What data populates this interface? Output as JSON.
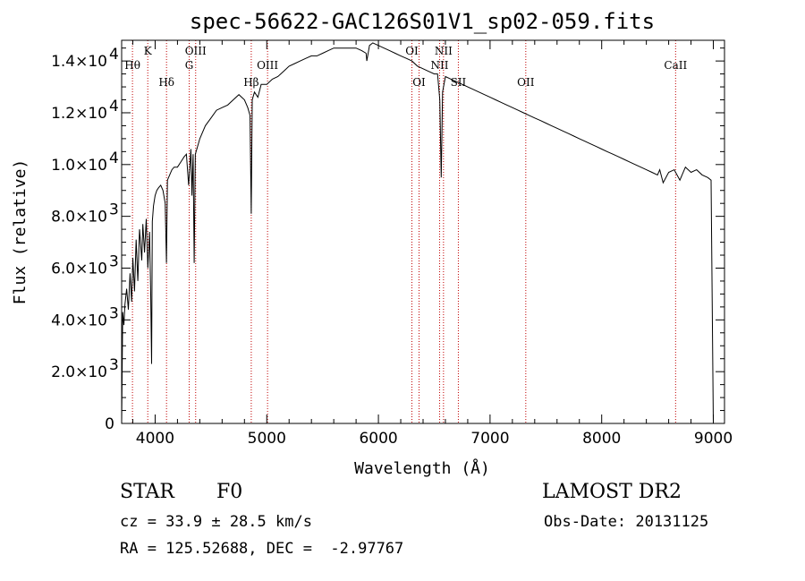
{
  "chart_data": {
    "type": "line",
    "title": "spec-56622-GAC126S01V1_sp02-059.fits",
    "xlabel": "Wavelength (Å)",
    "ylabel": "Flux (relative)",
    "xlim": [
      3700,
      9100
    ],
    "ylim": [
      0,
      14800
    ],
    "grid": false,
    "x_ticks": [
      4000,
      5000,
      6000,
      7000,
      8000,
      9000
    ],
    "y_ticks": [
      {
        "value": 0,
        "mant": "0",
        "exp": ""
      },
      {
        "value": 2000,
        "mant": "2.0×10",
        "exp": "3"
      },
      {
        "value": 4000,
        "mant": "4.0×10",
        "exp": "3"
      },
      {
        "value": 6000,
        "mant": "6.0×10",
        "exp": "3"
      },
      {
        "value": 8000,
        "mant": "8.0×10",
        "exp": "3"
      },
      {
        "value": 10000,
        "mant": "1.0×10",
        "exp": "4"
      },
      {
        "value": 12000,
        "mant": "1.2×10",
        "exp": "4"
      },
      {
        "value": 14000,
        "mant": "1.4×10",
        "exp": "4"
      }
    ],
    "series": [
      {
        "x": [
          3700,
          3710,
          3720,
          3730,
          3745,
          3760,
          3775,
          3790,
          3800,
          3815,
          3830,
          3845,
          3860,
          3880,
          3890,
          3905,
          3920,
          3935,
          3950,
          3960,
          3968,
          3975,
          3985,
          4000,
          4015,
          4030,
          4050,
          4070,
          4090,
          4101,
          4110,
          4130,
          4150,
          4170,
          4200,
          4230,
          4260,
          4280,
          4300,
          4320,
          4330,
          4340,
          4350,
          4360,
          4380,
          4400,
          4450,
          4500,
          4550,
          4600,
          4650,
          4700,
          4750,
          4800,
          4830,
          4850,
          4861,
          4870,
          4890,
          4920,
          4950,
          5000,
          5050,
          5100,
          5150,
          5200,
          5250,
          5300,
          5350,
          5400,
          5450,
          5500,
          5550,
          5600,
          5650,
          5700,
          5750,
          5800,
          5850,
          5890,
          5896,
          5920,
          5950,
          6000,
          6050,
          6100,
          6150,
          6200,
          6250,
          6300,
          6350,
          6400,
          6450,
          6500,
          6530,
          6550,
          6563,
          6575,
          6600,
          6650,
          6700,
          6750,
          6800,
          6850,
          6900,
          6950,
          7000,
          7050,
          7100,
          7150,
          7200,
          7250,
          7300,
          7350,
          7400,
          7450,
          7500,
          7550,
          7600,
          7650,
          7700,
          7750,
          7800,
          7850,
          7900,
          7950,
          8000,
          8050,
          8100,
          8150,
          8200,
          8250,
          8300,
          8350,
          8400,
          8450,
          8500,
          8520,
          8550,
          8600,
          8650,
          8700,
          8750,
          8800,
          8850,
          8900,
          8950,
          8980,
          9000
        ],
        "y": [
          0,
          4300,
          3800,
          4600,
          5200,
          4400,
          5800,
          4700,
          6400,
          5100,
          7100,
          5500,
          7500,
          6300,
          7700,
          6600,
          7900,
          6000,
          7400,
          5000,
          2300,
          7800,
          8400,
          8800,
          9000,
          9100,
          9200,
          9000,
          8500,
          6200,
          9400,
          9600,
          9800,
          9900,
          9900,
          10100,
          10300,
          10400,
          9200,
          10600,
          8800,
          10400,
          6200,
          10400,
          10700,
          11000,
          11500,
          11800,
          12100,
          12200,
          12300,
          12500,
          12700,
          12500,
          12200,
          11900,
          8100,
          12500,
          12800,
          12600,
          13100,
          13100,
          13300,
          13400,
          13600,
          13800,
          13900,
          14000,
          14100,
          14200,
          14200,
          14300,
          14400,
          14500,
          14500,
          14500,
          14500,
          14500,
          14400,
          14300,
          14000,
          14600,
          14700,
          14600,
          14500,
          14400,
          14300,
          14200,
          14100,
          14000,
          13800,
          13700,
          13600,
          13500,
          13500,
          12500,
          9500,
          12800,
          13400,
          13300,
          13200,
          13100,
          13000,
          12900,
          12800,
          12700,
          12600,
          12500,
          12400,
          12300,
          12200,
          12100,
          12000,
          11900,
          11800,
          11700,
          11600,
          11500,
          11400,
          11300,
          11200,
          11100,
          11000,
          10900,
          10800,
          10700,
          10600,
          10500,
          10400,
          10300,
          10200,
          10100,
          10000,
          9900,
          9800,
          9700,
          9600,
          9800,
          9300,
          9700,
          9800,
          9400,
          9900,
          9700,
          9800,
          9600,
          9500,
          9400,
          0
        ]
      }
    ],
    "line_markers": [
      {
        "wave": 3797,
        "label": "Hθ",
        "row": 1
      },
      {
        "wave": 3934,
        "label": "K",
        "row": 0
      },
      {
        "wave": 4102,
        "label": "Hδ",
        "row": 2
      },
      {
        "wave": 4305,
        "label": "G",
        "row": 1
      },
      {
        "wave": 4363,
        "label": "OIII",
        "row": 0
      },
      {
        "wave": 4861,
        "label": "Hβ",
        "row": 2
      },
      {
        "wave": 5007,
        "label": "OIII",
        "row": 1
      },
      {
        "wave": 6300,
        "label": "OI",
        "row": 0
      },
      {
        "wave": 6364,
        "label": "OI",
        "row": 2
      },
      {
        "wave": 6548,
        "label": "NII",
        "row": 1
      },
      {
        "wave": 6583,
        "label": "NII",
        "row": 0
      },
      {
        "wave": 6716,
        "label": "SII",
        "row": 2
      },
      {
        "wave": 7320,
        "label": "OII",
        "row": 2
      },
      {
        "wave": 8662,
        "label": "CaII",
        "row": 1
      }
    ]
  },
  "info": {
    "class": "STAR",
    "subclass": "F0",
    "survey": "LAMOST DR2",
    "cz": "cz = 33.9 ± 28.5 km/s",
    "obs_date": "Obs-Date: 20131125",
    "radec": "RA = 125.52688, DEC =  -2.97767"
  }
}
